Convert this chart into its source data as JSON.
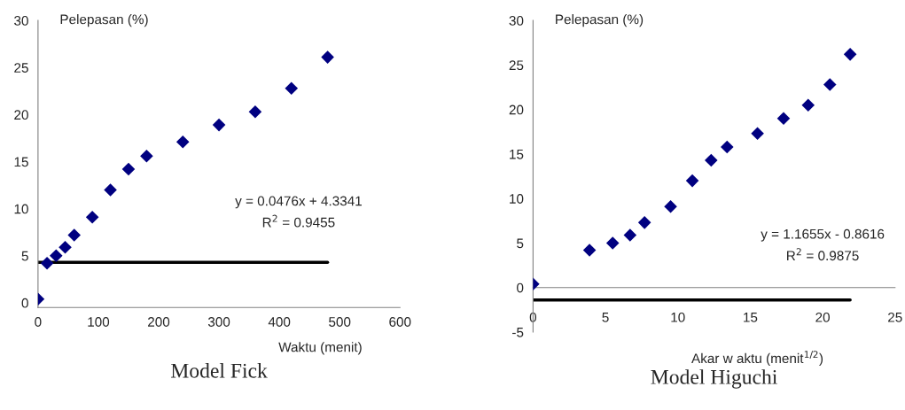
{
  "chart_data": [
    {
      "type": "scatter",
      "title": "Model Fick",
      "xlabel": "Waktu (menit)",
      "ylabel": "Pelepasan (%)",
      "marker": "diamond",
      "grid": false,
      "legend": false,
      "x": [
        0,
        15,
        30,
        45,
        60,
        90,
        120,
        150,
        180,
        240,
        300,
        360,
        420,
        480
      ],
      "series": [
        {
          "color": "#000080",
          "values": [
            0.4,
            4.2,
            5.0,
            5.9,
            7.2,
            9.1,
            12.0,
            14.2,
            15.6,
            17.1,
            18.9,
            20.3,
            22.8,
            26.1
          ]
        },
        {
          "type": "line",
          "color": "#000000",
          "marker": "none",
          "x": [
            0,
            480
          ],
          "values": [
            4.3,
            4.3
          ]
        }
      ],
      "xlim": [
        0,
        600
      ],
      "xticks": [
        0,
        100,
        200,
        300,
        400,
        500,
        600
      ],
      "ylim": [
        -0.5,
        30
      ],
      "yticks": [
        0,
        5,
        10,
        15,
        20,
        25,
        30
      ],
      "annotations": [
        "y = 0.0476x + 4.3341",
        "R$^{2}$ = 0.9455"
      ]
    },
    {
      "type": "scatter",
      "title": "Model Higuchi",
      "xlabel": "Akar w aktu (menit$^{1/2}$)",
      "ylabel": "Pelepasan (%)",
      "marker": "diamond",
      "grid": false,
      "legend": false,
      "x": [
        0,
        3.9,
        5.5,
        6.7,
        7.7,
        9.5,
        11.0,
        12.3,
        13.4,
        15.5,
        17.3,
        19.0,
        20.5,
        21.9
      ],
      "series": [
        {
          "color": "#000080",
          "values": [
            0.4,
            4.2,
            5.0,
            5.9,
            7.3,
            9.1,
            12.0,
            14.3,
            15.8,
            17.3,
            19.0,
            20.5,
            22.8,
            26.2
          ]
        },
        {
          "type": "line",
          "color": "#000000",
          "marker": "none",
          "x": [
            0,
            21.9
          ],
          "values": [
            -1.4,
            -1.4
          ]
        }
      ],
      "xlim": [
        0,
        25
      ],
      "xticks": [
        0,
        5,
        10,
        15,
        20,
        25
      ],
      "ylim": [
        -5,
        30
      ],
      "yticks": [
        -5,
        0,
        5,
        10,
        15,
        20,
        25,
        30
      ],
      "annotations": [
        "y = 1.1655x - 0.8616",
        "R$^{2}$ = 0.9875"
      ]
    }
  ]
}
